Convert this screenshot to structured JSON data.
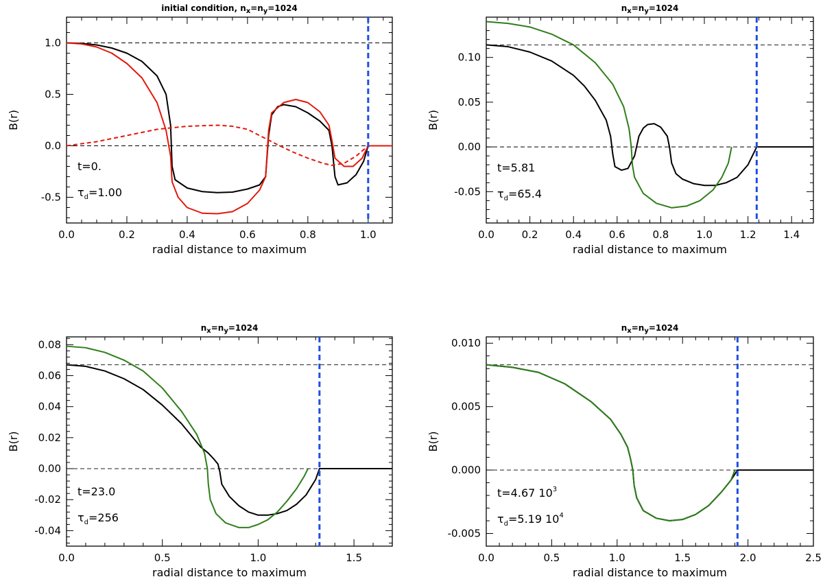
{
  "chart_data": [
    {
      "type": "line",
      "title": "initial condition, n",
      "title_parts": {
        "prefix": "initial condition, n",
        "sub1": "x",
        "mid": "=n",
        "sub2": "y",
        "suffix": "=1024"
      },
      "xlabel": "radial distance to maximum",
      "ylabel": "B(r)",
      "xlim": [
        0.0,
        1.08
      ],
      "ylim": [
        -0.75,
        1.25
      ],
      "xticks": [
        0.0,
        0.2,
        0.4,
        0.6,
        0.8,
        1.0
      ],
      "xtick_labels": [
        "0.0",
        "0.2",
        "0.4",
        "0.6",
        "0.8",
        "1.0"
      ],
      "yticks": [
        -0.5,
        0.0,
        0.5,
        1.0
      ],
      "ytick_labels": [
        "-0.5",
        "0.0",
        "0.5",
        "1.0"
      ],
      "hlines": [
        1.0,
        0.0
      ],
      "vline": 1.0,
      "annotations": {
        "t": "t=0.",
        "tau_sym": "τ",
        "tau_sub": "d",
        "tau_val": "=1.00"
      },
      "series": [
        {
          "name": "black",
          "color": "#000000",
          "style": "solid",
          "x": [
            0,
            0.05,
            0.1,
            0.15,
            0.2,
            0.25,
            0.3,
            0.33,
            0.345,
            0.35,
            0.36,
            0.4,
            0.45,
            0.5,
            0.55,
            0.6,
            0.64,
            0.66,
            0.67,
            0.68,
            0.7,
            0.72,
            0.76,
            0.8,
            0.84,
            0.87,
            0.88,
            0.89,
            0.9,
            0.93,
            0.96,
            0.985,
            1.0,
            1.08
          ],
          "y": [
            1.0,
            0.995,
            0.98,
            0.95,
            0.9,
            0.82,
            0.68,
            0.5,
            0.2,
            -0.2,
            -0.33,
            -0.41,
            -0.445,
            -0.455,
            -0.45,
            -0.42,
            -0.38,
            -0.3,
            0.1,
            0.3,
            0.38,
            0.4,
            0.38,
            0.32,
            0.24,
            0.15,
            0.0,
            -0.3,
            -0.38,
            -0.36,
            -0.28,
            -0.15,
            0.0,
            0.0
          ]
        },
        {
          "name": "red",
          "color": "#e3170a",
          "style": "solid",
          "x": [
            0,
            0.05,
            0.1,
            0.15,
            0.2,
            0.25,
            0.3,
            0.33,
            0.345,
            0.35,
            0.37,
            0.4,
            0.45,
            0.5,
            0.55,
            0.6,
            0.64,
            0.66,
            0.67,
            0.68,
            0.72,
            0.76,
            0.8,
            0.84,
            0.87,
            0.88,
            0.89,
            0.92,
            0.95,
            0.98,
            1.0,
            1.08
          ],
          "y": [
            1.0,
            0.99,
            0.96,
            0.9,
            0.8,
            0.66,
            0.42,
            0.15,
            -0.1,
            -0.35,
            -0.5,
            -0.6,
            -0.655,
            -0.66,
            -0.64,
            -0.56,
            -0.43,
            -0.3,
            0.15,
            0.32,
            0.42,
            0.45,
            0.42,
            0.33,
            0.2,
            0.05,
            -0.12,
            -0.2,
            -0.2,
            -0.12,
            0.0,
            0.0
          ]
        },
        {
          "name": "red-dashed",
          "color": "#e3170a",
          "style": "dashed",
          "x": [
            0,
            0.1,
            0.2,
            0.3,
            0.4,
            0.5,
            0.55,
            0.6,
            0.66,
            0.7,
            0.75,
            0.8,
            0.85,
            0.88,
            0.92,
            0.96,
            1.0
          ],
          "y": [
            0.0,
            0.04,
            0.1,
            0.16,
            0.19,
            0.2,
            0.19,
            0.16,
            0.07,
            0.01,
            -0.06,
            -0.12,
            -0.17,
            -0.19,
            -0.17,
            -0.1,
            0.0
          ]
        }
      ]
    },
    {
      "type": "line",
      "title": "n",
      "title_parts": {
        "prefix": "n",
        "sub1": "x",
        "mid": "=n",
        "sub2": "y",
        "suffix": "=1024"
      },
      "xlabel": "radial distance to maximum",
      "ylabel": "B(r)",
      "xlim": [
        0.0,
        1.5
      ],
      "ylim": [
        -0.085,
        0.145
      ],
      "xticks": [
        0.0,
        0.2,
        0.4,
        0.6,
        0.8,
        1.0,
        1.2,
        1.4
      ],
      "xtick_labels": [
        "0.0",
        "0.2",
        "0.4",
        "0.6",
        "0.8",
        "1.0",
        "1.2",
        "1.4"
      ],
      "yticks": [
        -0.05,
        0.0,
        0.05,
        0.1
      ],
      "ytick_labels": [
        "-0.05",
        "0.00",
        "0.05",
        "0.10"
      ],
      "hlines": [
        0.114,
        0.0
      ],
      "vline": 1.24,
      "annotations": {
        "t": "t=5.81",
        "tau_sym": "τ",
        "tau_sub": "d",
        "tau_val": "=65.4"
      },
      "series": [
        {
          "name": "black",
          "color": "#000000",
          "style": "solid",
          "x": [
            0,
            0.1,
            0.2,
            0.3,
            0.4,
            0.45,
            0.5,
            0.55,
            0.57,
            0.58,
            0.59,
            0.62,
            0.65,
            0.68,
            0.7,
            0.72,
            0.74,
            0.77,
            0.8,
            0.83,
            0.84,
            0.85,
            0.87,
            0.9,
            0.95,
            1.0,
            1.05,
            1.1,
            1.15,
            1.2,
            1.24,
            1.5
          ],
          "y": [
            0.114,
            0.112,
            0.106,
            0.096,
            0.08,
            0.068,
            0.052,
            0.03,
            0.012,
            -0.008,
            -0.022,
            -0.026,
            -0.024,
            -0.01,
            0.012,
            0.021,
            0.025,
            0.026,
            0.022,
            0.012,
            0.0,
            -0.018,
            -0.03,
            -0.036,
            -0.041,
            -0.043,
            -0.043,
            -0.04,
            -0.034,
            -0.02,
            0.0,
            0.0
          ]
        },
        {
          "name": "green",
          "color": "#2e7d1a",
          "style": "solid",
          "x": [
            0,
            0.1,
            0.2,
            0.3,
            0.4,
            0.5,
            0.58,
            0.63,
            0.655,
            0.665,
            0.67,
            0.68,
            0.72,
            0.78,
            0.85,
            0.92,
            0.98,
            1.04,
            1.08,
            1.11,
            1.125
          ],
          "y": [
            0.14,
            0.138,
            0.134,
            0.126,
            0.114,
            0.094,
            0.07,
            0.045,
            0.02,
            0.0,
            -0.02,
            -0.034,
            -0.052,
            -0.063,
            -0.068,
            -0.066,
            -0.06,
            -0.048,
            -0.034,
            -0.018,
            0.0
          ]
        }
      ]
    },
    {
      "type": "line",
      "title": "n",
      "title_parts": {
        "prefix": "n",
        "sub1": "x",
        "mid": "=n",
        "sub2": "y",
        "suffix": "=1024"
      },
      "xlabel": "radial distance to maximum",
      "ylabel": "B(r)",
      "xlim": [
        0.0,
        1.7
      ],
      "ylim": [
        -0.05,
        0.085
      ],
      "xticks": [
        0.0,
        0.5,
        1.0,
        1.5
      ],
      "xtick_labels": [
        "0.0",
        "0.5",
        "1.0",
        "1.5"
      ],
      "yticks": [
        -0.04,
        -0.02,
        0.0,
        0.02,
        0.04,
        0.06,
        0.08
      ],
      "ytick_labels": [
        "-0.04",
        "-0.02",
        "0.00",
        "0.02",
        "0.04",
        "0.06",
        "0.08"
      ],
      "hlines": [
        0.067,
        0.0
      ],
      "vline": 1.32,
      "annotations": {
        "t": "t=23.0",
        "tau_sym": "τ",
        "tau_sub": "d",
        "tau_val": "=256"
      },
      "series": [
        {
          "name": "black",
          "color": "#000000",
          "style": "solid",
          "x": [
            0,
            0.1,
            0.2,
            0.3,
            0.4,
            0.5,
            0.6,
            0.66,
            0.7,
            0.74,
            0.77,
            0.79,
            0.8,
            0.81,
            0.85,
            0.9,
            0.95,
            1.0,
            1.05,
            1.1,
            1.15,
            1.2,
            1.25,
            1.3,
            1.32,
            1.7
          ],
          "y": [
            0.067,
            0.066,
            0.063,
            0.058,
            0.051,
            0.041,
            0.029,
            0.02,
            0.014,
            0.01,
            0.006,
            0.003,
            -0.002,
            -0.01,
            -0.018,
            -0.024,
            -0.028,
            -0.03,
            -0.03,
            -0.029,
            -0.027,
            -0.023,
            -0.017,
            -0.007,
            0.0,
            0.0
          ]
        },
        {
          "name": "green",
          "color": "#2e7d1a",
          "style": "solid",
          "x": [
            0,
            0.1,
            0.2,
            0.3,
            0.4,
            0.5,
            0.6,
            0.68,
            0.72,
            0.735,
            0.74,
            0.75,
            0.78,
            0.83,
            0.9,
            0.95,
            1.0,
            1.05,
            1.1,
            1.15,
            1.2,
            1.24,
            1.26
          ],
          "y": [
            0.079,
            0.078,
            0.075,
            0.07,
            0.063,
            0.052,
            0.037,
            0.022,
            0.01,
            0.0,
            -0.01,
            -0.02,
            -0.029,
            -0.035,
            -0.038,
            -0.038,
            -0.036,
            -0.033,
            -0.028,
            -0.021,
            -0.013,
            -0.005,
            0.0
          ]
        }
      ]
    },
    {
      "type": "line",
      "title": "n",
      "title_parts": {
        "prefix": "n",
        "sub1": "x",
        "mid": "=n",
        "sub2": "y",
        "suffix": "=1024"
      },
      "xlabel": "radial distance to maximum",
      "ylabel": "B(r)",
      "xlim": [
        0.0,
        2.5
      ],
      "ylim": [
        -0.006,
        0.0105
      ],
      "xticks": [
        0.0,
        0.5,
        1.0,
        1.5,
        2.0,
        2.5
      ],
      "xtick_labels": [
        "0.0",
        "0.5",
        "1.0",
        "1.5",
        "2.0",
        "2.5"
      ],
      "yticks": [
        -0.005,
        0.0,
        0.005,
        0.01
      ],
      "ytick_labels": [
        "-0.005",
        "0.000",
        "0.005",
        "0.010"
      ],
      "hlines": [
        0.0083,
        0.0
      ],
      "vline": 1.92,
      "annotations": {
        "t": "t=4.67 10",
        "t_exp": "3",
        "tau_sym": "τ",
        "tau_sub": "d",
        "tau_val": "=5.19 10",
        "tau_exp": "4"
      },
      "series": [
        {
          "name": "black",
          "color": "#000000",
          "style": "solid",
          "x": [
            0,
            0.2,
            0.4,
            0.6,
            0.8,
            0.95,
            1.03,
            1.08,
            1.1,
            1.12,
            1.13,
            1.15,
            1.2,
            1.3,
            1.4,
            1.5,
            1.6,
            1.7,
            1.8,
            1.87,
            1.92,
            2.5
          ],
          "y": [
            0.0083,
            0.0081,
            0.0077,
            0.0068,
            0.0054,
            0.004,
            0.0028,
            0.0018,
            0.001,
            0.0,
            -0.0012,
            -0.0022,
            -0.0032,
            -0.0038,
            -0.004,
            -0.0039,
            -0.0035,
            -0.0028,
            -0.0017,
            -0.0008,
            0.0,
            0.0
          ]
        },
        {
          "name": "green",
          "color": "#2e7d1a",
          "style": "solid",
          "x": [
            0,
            0.2,
            0.4,
            0.6,
            0.8,
            0.95,
            1.03,
            1.08,
            1.1,
            1.12,
            1.13,
            1.15,
            1.2,
            1.3,
            1.4,
            1.5,
            1.6,
            1.7,
            1.8,
            1.87,
            1.9
          ],
          "y": [
            0.0083,
            0.0081,
            0.0077,
            0.0068,
            0.0054,
            0.004,
            0.0028,
            0.0018,
            0.001,
            0.0,
            -0.0012,
            -0.0022,
            -0.0032,
            -0.0038,
            -0.004,
            -0.0039,
            -0.0035,
            -0.0028,
            -0.0017,
            -0.0008,
            0.0
          ]
        }
      ]
    }
  ]
}
